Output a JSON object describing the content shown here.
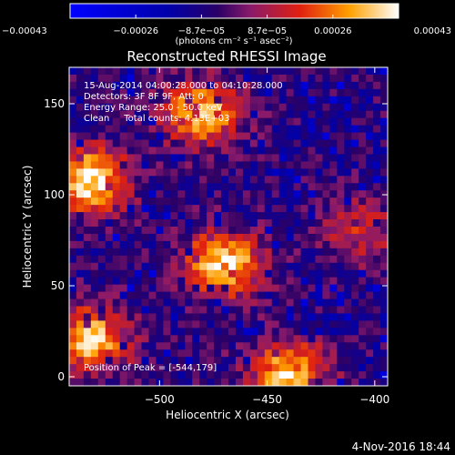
{
  "chart_data": {
    "type": "heatmap",
    "title": "Reconstructed RHESSI Image",
    "xlabel": "Heliocentric X (arcsec)",
    "ylabel": "Heliocentric Y (arcsec)",
    "xlim": [
      -542,
      -394
    ],
    "ylim": [
      -5,
      170
    ],
    "x_ticks": [
      -500,
      -450,
      -400
    ],
    "x_tick_labels": [
      "−500",
      "−450",
      "−400"
    ],
    "y_ticks": [
      0,
      50,
      100,
      150
    ],
    "y_tick_labels": [
      "0",
      "50",
      "100",
      "150"
    ],
    "colorbar": {
      "range": [
        -0.00043,
        0.00043
      ],
      "tick_labels": [
        "−0.00043",
        "−0.00026",
        "−8.7e−05",
        "8.7e−05",
        "0.00026",
        "0.00043"
      ],
      "unit_label": "(photons cm⁻² s⁻¹ asec⁻²)"
    },
    "annotations": {
      "time_range": "15-Aug-2014 04:00:28.000 to 04:10:28.000",
      "detectors": "Detectors: 3F 8F 9F, Att: 0",
      "energy_range": "Energy Range: 25.0 - 50.0 keV",
      "clean_counts": "Clean     Total counts: 4.13E+03",
      "peak_position": "Position of Peak = [-544,179]"
    },
    "intensity_features": [
      {
        "region": "upper-left arc",
        "center": [
          -480,
          145
        ],
        "relative_level": 0.8
      },
      {
        "region": "left edge hotspot",
        "center": [
          -532,
          108
        ],
        "relative_level": 0.95
      },
      {
        "region": "central bright patch",
        "center": [
          -470,
          62
        ],
        "relative_level": 0.9
      },
      {
        "region": "lower-left hotspot",
        "center": [
          -532,
          20
        ],
        "relative_level": 0.85
      },
      {
        "region": "bottom-center hotspot",
        "center": [
          -440,
          2
        ],
        "relative_level": 0.85
      },
      {
        "region": "right faint patch",
        "center": [
          -407,
          80
        ],
        "relative_level": 0.4
      }
    ]
  },
  "footer": {
    "date": "4-Nov-2016 18:44"
  }
}
